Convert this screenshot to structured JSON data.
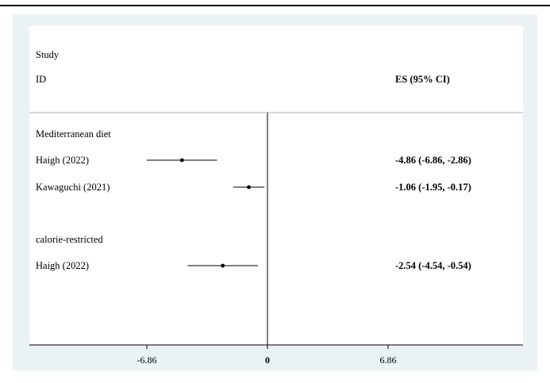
{
  "chart_data": {
    "type": "forest",
    "headers": {
      "study_line1": "Study",
      "study_line2": "ID",
      "es": "ES (95% CI)"
    },
    "xlim": [
      -10.3,
      10.3
    ],
    "ticks": [
      {
        "value": -6.86,
        "label": "-6.86"
      },
      {
        "value": 0,
        "label": "0"
      },
      {
        "value": 6.86,
        "label": "6.86"
      }
    ],
    "groups": [
      {
        "label": "Mediterranean diet",
        "studies": [
          {
            "id": "Haigh (2022)",
            "es": -4.86,
            "lo": -6.86,
            "hi": -2.86,
            "es_label": "-4.86 (-6.86, -2.86)"
          },
          {
            "id": "Kawaguchi (2021)",
            "es": -1.06,
            "lo": -1.95,
            "hi": -0.17,
            "es_label": "-1.06 (-1.95, -0.17)"
          }
        ]
      },
      {
        "label": "calorie-restricted",
        "studies": [
          {
            "id": "Haigh (2022)",
            "es": -2.54,
            "lo": -4.54,
            "hi": -0.54,
            "es_label": "-2.54 (-4.54, -0.54)"
          }
        ]
      }
    ]
  }
}
